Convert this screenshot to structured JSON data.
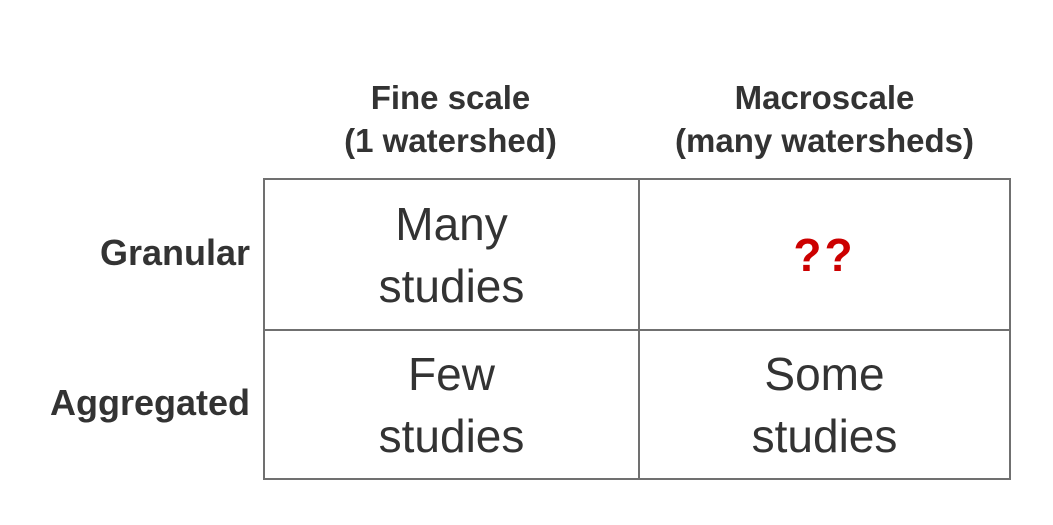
{
  "columns": [
    {
      "line1": "Fine scale",
      "line2": "(1 watershed)"
    },
    {
      "line1": "Macroscale",
      "line2": "(many watersheds)"
    }
  ],
  "rows": [
    {
      "label": "Granular"
    },
    {
      "label": "Aggregated"
    }
  ],
  "cells": {
    "fine_granular": {
      "line1": "Many",
      "line2": "studies"
    },
    "macro_granular": {
      "text": "??"
    },
    "fine_aggregated": {
      "line1": "Few",
      "line2": "studies"
    },
    "macro_aggregated": {
      "line1": "Some",
      "line2": "studies"
    }
  },
  "colors": {
    "text": "#333333",
    "highlight": "#cc0000",
    "grid_line": "#707070"
  }
}
